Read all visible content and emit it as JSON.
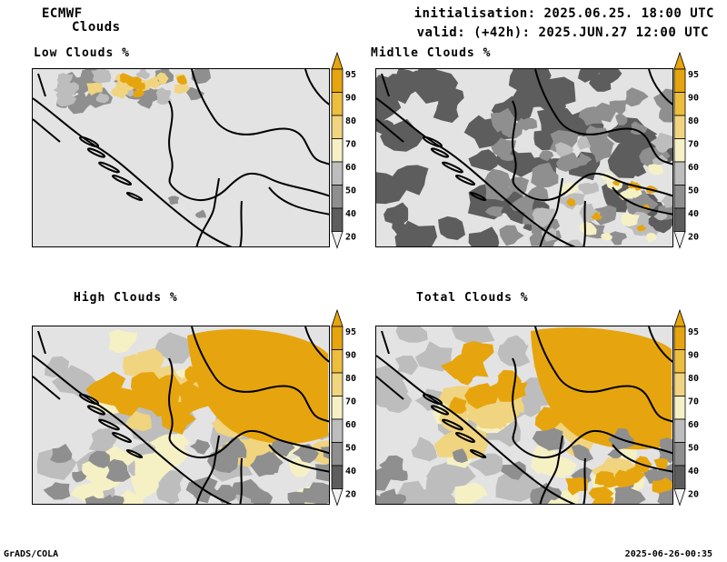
{
  "header": {
    "model": "ECMWF",
    "product": "Clouds",
    "init": "initialisation: 2025.06.25. 18:00 UTC",
    "valid": "valid: (+42h): 2025.JUN.27 12:00 UTC"
  },
  "panels": [
    {
      "title": "Low Clouds %",
      "coverage": "low"
    },
    {
      "title": "Midlle Clouds %",
      "coverage": "middle"
    },
    {
      "title": "High Clouds %",
      "coverage": "high"
    },
    {
      "title": "Total Clouds %",
      "coverage": "total"
    }
  ],
  "colorbar": {
    "labels": [
      "95",
      "90",
      "80",
      "70",
      "60",
      "50",
      "40",
      "20"
    ],
    "colors": [
      "#e6a50e",
      "#edbd3e",
      "#f0d480",
      "#f5f1c5",
      "#bdbdbd",
      "#8f8f8f",
      "#5d5d5d",
      "#ffffff"
    ],
    "top_arrow_color": "#e6a50e",
    "bottom_arrow_color": "#f2f2f2"
  },
  "colors": {
    "background": "#e3e3e3",
    "orange": "#e6a50e",
    "light_orange": "#edbd3e",
    "pale_orange": "#f0d480",
    "cream": "#f5f1c5",
    "light_grey": "#bdbdbd",
    "mid_grey": "#8f8f8f",
    "dark_grey": "#5d5d5d"
  },
  "footer": {
    "left": "GrADS/COLA",
    "right": "2025-06-26-00:35"
  }
}
